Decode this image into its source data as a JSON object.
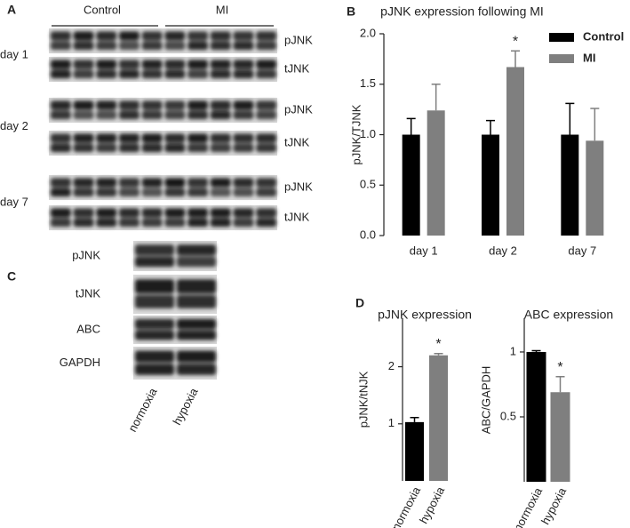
{
  "panel_labels": [
    "A",
    "B",
    "C",
    "D"
  ],
  "blot_A": {
    "groups": [
      "Control",
      "MI"
    ],
    "rows": [
      {
        "label": "day 1",
        "bands": [
          "pJNK",
          "tJNK"
        ]
      },
      {
        "label": "day 2",
        "bands": [
          "pJNK",
          "tJNK"
        ]
      },
      {
        "label": "day 7",
        "bands": [
          "pJNK",
          "tJNK"
        ]
      }
    ]
  },
  "blot_C": {
    "bands": [
      "pJNK",
      "tJNK",
      "ABC",
      "GAPDH"
    ],
    "conditions": [
      "normoxia",
      "hypoxia"
    ]
  },
  "chart_data": [
    {
      "type": "bar",
      "title": "pJNK expression following MI",
      "y_label": "pJNK/TJNK",
      "categories": [
        "day 1",
        "day 2",
        "day 7"
      ],
      "series": [
        {
          "name": "Control",
          "color": "#000000",
          "values": [
            1.0,
            1.0,
            1.0
          ],
          "errors": [
            0.16,
            0.14,
            0.31
          ]
        },
        {
          "name": "MI",
          "color": "#7f7f7f",
          "values": [
            1.24,
            1.67,
            0.94
          ],
          "errors": [
            0.26,
            0.16,
            0.32
          ]
        }
      ],
      "ylim": [
        0,
        2.0
      ],
      "yticks": [
        {
          "value": 0,
          "label": "0.0"
        },
        {
          "value": 0.5,
          "label": "0.5"
        },
        {
          "value": 1,
          "label": "1.0"
        },
        {
          "value": 1.5,
          "label": "1.5"
        },
        {
          "value": 2,
          "label": "2.0"
        }
      ],
      "legend": "top-right",
      "annotations": [
        {
          "text": "*",
          "category": "day 2",
          "series": "MI"
        }
      ]
    },
    {
      "type": "bar",
      "title": "pJNK expression",
      "y_label": "pJNK/tNJK",
      "categories": [
        "normoxia",
        "hypoxia"
      ],
      "values": [
        1.03,
        2.2
      ],
      "errors": [
        0.08,
        0.03
      ],
      "colors": [
        "#000000",
        "#7f7f7f"
      ],
      "ylim": [
        0,
        2.85
      ],
      "yticks": [
        1,
        2
      ],
      "annotations": [
        {
          "text": "*",
          "category": "hypoxia"
        }
      ]
    },
    {
      "type": "bar",
      "title": "ABC expression",
      "y_label": "ABC/GAPDH",
      "categories": [
        "normoxia",
        "hypoxia"
      ],
      "values": [
        1.0,
        0.69
      ],
      "errors": [
        0.01,
        0.12
      ],
      "colors": [
        "#000000",
        "#7f7f7f"
      ],
      "ylim": [
        0,
        1.26
      ],
      "yticks": [
        0.5,
        1
      ],
      "annotations": [
        {
          "text": "*",
          "category": "hypoxia"
        }
      ]
    }
  ]
}
